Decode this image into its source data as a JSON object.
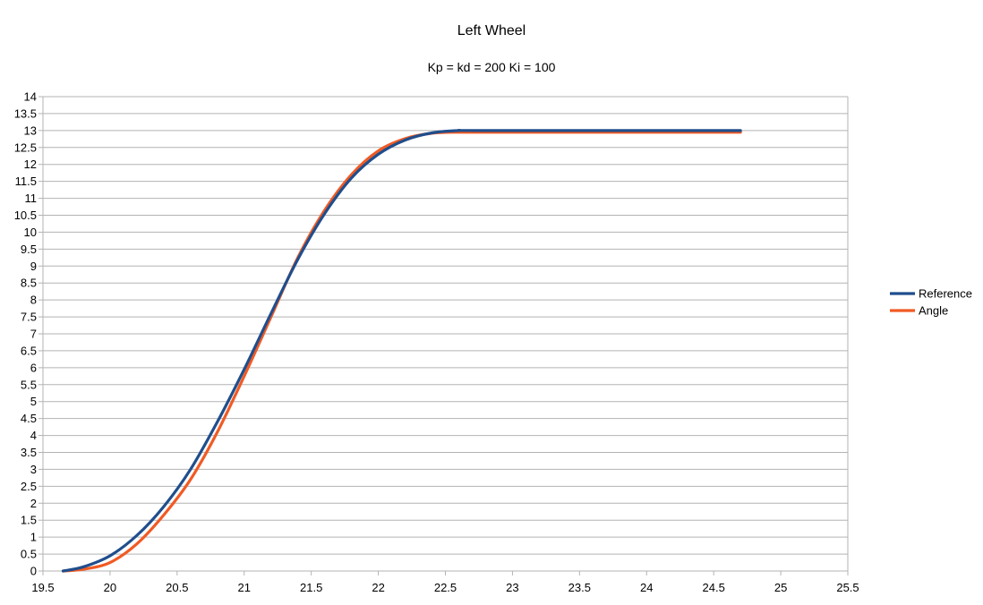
{
  "chart_data": {
    "type": "line",
    "title": "Left Wheel",
    "subtitle": "Kp = kd = 200 Ki = 100",
    "xlabel": "",
    "ylabel": "",
    "xlim": [
      19.5,
      25.5
    ],
    "ylim": [
      0,
      14
    ],
    "x_ticks": [
      "19.5",
      "20",
      "20.5",
      "21",
      "21.5",
      "22",
      "22.5",
      "23",
      "23.5",
      "24",
      "24.5",
      "25",
      "25.5"
    ],
    "y_ticks": [
      "0",
      "0.5",
      "1",
      "1.5",
      "2",
      "2.5",
      "3",
      "3.5",
      "4",
      "4.5",
      "5",
      "5.5",
      "6",
      "6.5",
      "7",
      "7.5",
      "8",
      "8.5",
      "9",
      "9.5",
      "10",
      "10.5",
      "11",
      "11.5",
      "12",
      "12.5",
      "13",
      "13.5",
      "14"
    ],
    "grid": true,
    "legend_position": "right",
    "series": [
      {
        "name": "Reference",
        "color": "#1f4e8c",
        "x": [
          19.65,
          19.8,
          20.0,
          20.2,
          20.4,
          20.6,
          20.8,
          21.0,
          21.2,
          21.4,
          21.6,
          21.8,
          22.0,
          22.2,
          22.4,
          22.6,
          22.8,
          24.7
        ],
        "y": [
          0.0,
          0.12,
          0.45,
          1.05,
          1.9,
          3.0,
          4.4,
          5.95,
          7.6,
          9.2,
          10.55,
          11.6,
          12.3,
          12.72,
          12.93,
          13.0,
          13.0,
          13.0
        ]
      },
      {
        "name": "Angle",
        "color": "#f15a24",
        "x": [
          19.65,
          19.8,
          20.0,
          20.2,
          20.4,
          20.6,
          20.8,
          21.0,
          21.2,
          21.4,
          21.6,
          21.8,
          22.0,
          22.2,
          22.4,
          22.6,
          22.8,
          24.7
        ],
        "y": [
          0.0,
          0.05,
          0.25,
          0.8,
          1.65,
          2.7,
          4.1,
          5.75,
          7.5,
          9.25,
          10.65,
          11.7,
          12.4,
          12.76,
          12.92,
          12.95,
          12.95,
          12.95
        ]
      }
    ]
  }
}
